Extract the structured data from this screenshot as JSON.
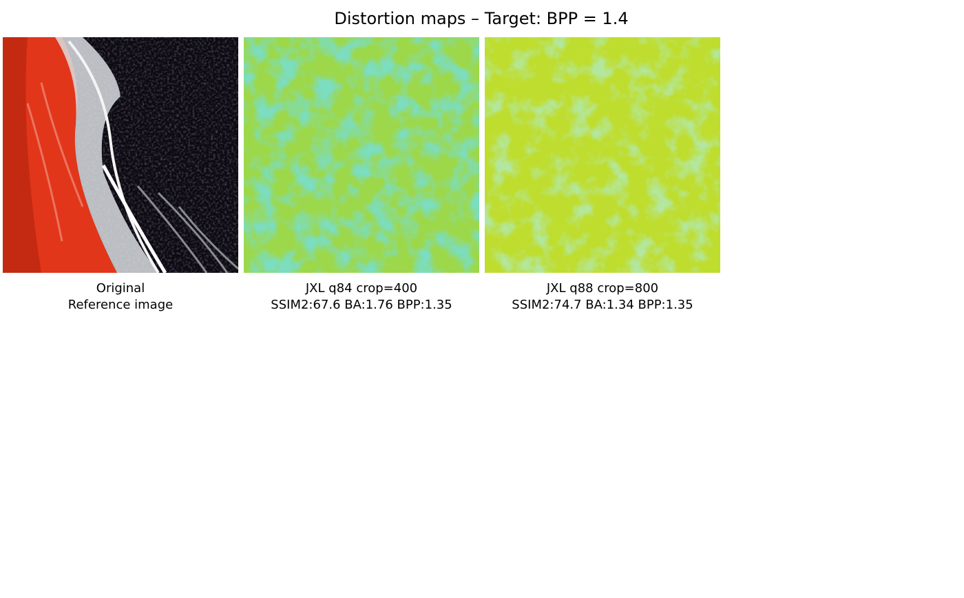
{
  "title": "Distortion maps – Target: BPP = 1.4",
  "panels": [
    {
      "lines": [
        "Original",
        "Reference image"
      ]
    },
    {
      "lines": [
        "JXL q84 crop=400",
        "SSIM2:67.6 BA:1.76 BPP:1.35"
      ]
    },
    {
      "lines": [
        "JXL q88 crop=800",
        "SSIM2:74.7 BA:1.34 BPP:1.35"
      ]
    }
  ]
}
